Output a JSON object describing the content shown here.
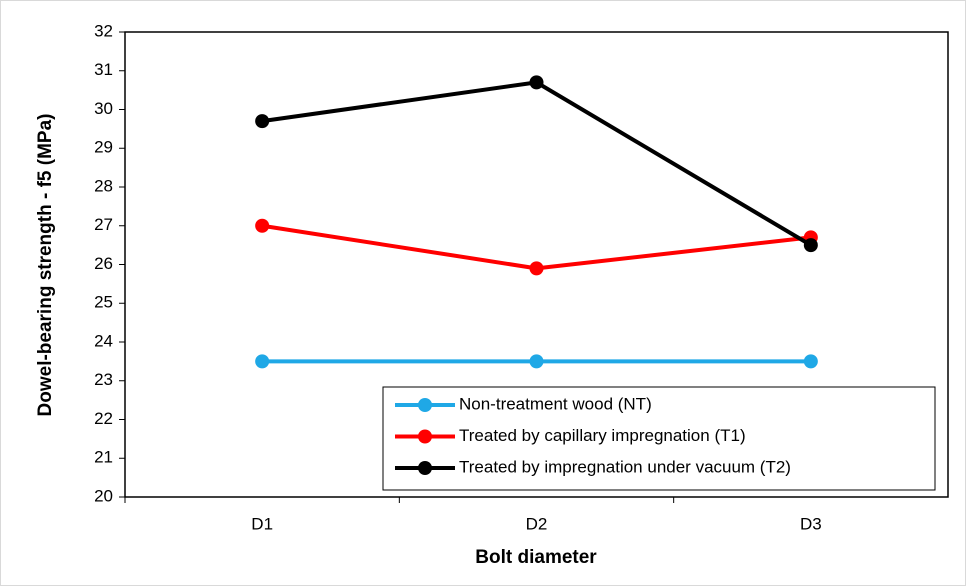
{
  "chart_data": {
    "type": "line",
    "x_label": "Bolt diameter",
    "y_label": "Dowel-bearing strength - f5 (MPa)",
    "categories": [
      "D1",
      "D2",
      "D3"
    ],
    "series": [
      {
        "name": "Non-treatment wood (NT)",
        "color": "#1fa8e6",
        "values": [
          23.5,
          23.5,
          23.5
        ]
      },
      {
        "name": "Treated by capillary impregnation (T1)",
        "color": "#ff0000",
        "values": [
          27,
          25.9,
          26.7
        ]
      },
      {
        "name": "Treated by impregnation under vacuum (T2)",
        "color": "#000000",
        "values": [
          29.7,
          30.7,
          26.5
        ]
      }
    ],
    "ylim": [
      20,
      32
    ],
    "yticks": [
      20,
      21,
      22,
      23,
      24,
      25,
      26,
      27,
      28,
      29,
      30,
      31,
      32
    ],
    "grid": false,
    "legend": "lower right"
  }
}
